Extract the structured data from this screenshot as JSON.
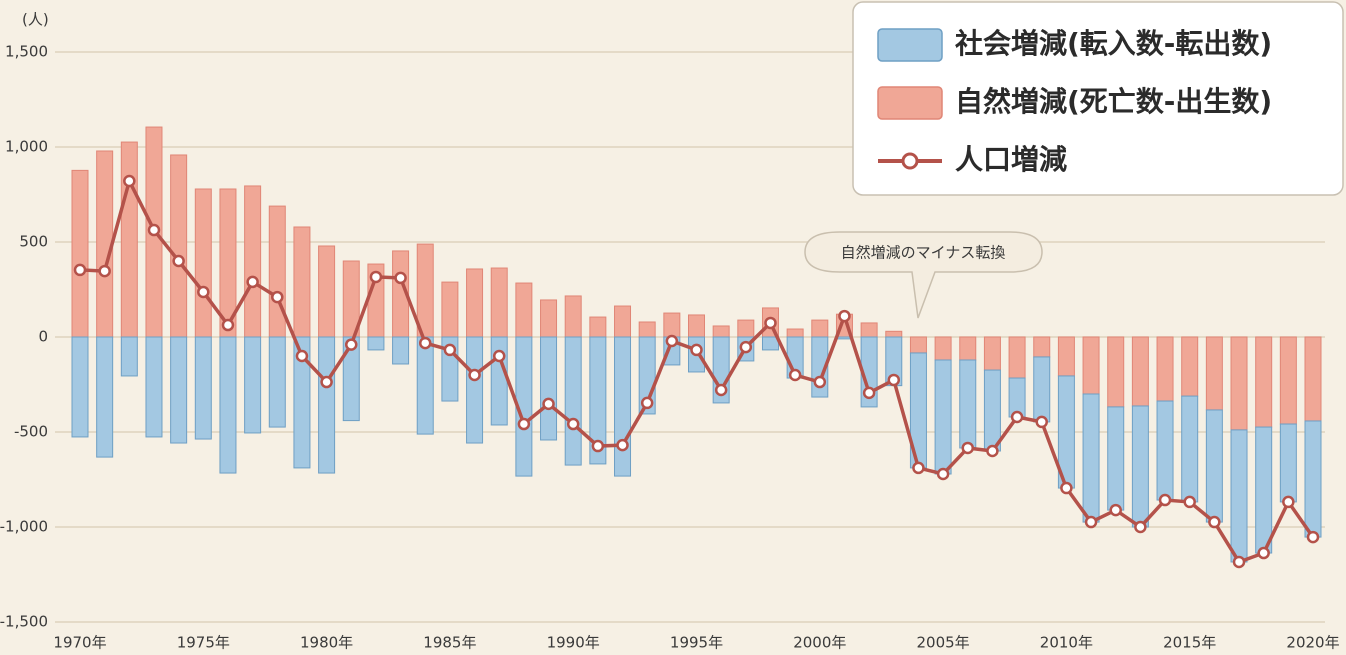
{
  "chart_data": {
    "type": "bar",
    "y_label": "(人)",
    "annotation": "自然増減のマイナス転換",
    "categories": [
      "1970年",
      null,
      null,
      null,
      null,
      "1975年",
      null,
      null,
      null,
      null,
      "1980年",
      null,
      null,
      null,
      null,
      "1985年",
      null,
      null,
      null,
      null,
      "1990年",
      null,
      null,
      null,
      null,
      "1995年",
      null,
      null,
      null,
      null,
      "2000年",
      null,
      null,
      null,
      null,
      "2005年",
      null,
      null,
      null,
      null,
      "2010年",
      null,
      null,
      null,
      null,
      "2015年",
      null,
      null,
      null,
      null,
      "2020年"
    ],
    "series": [
      {
        "name": "社会増減(転入数-転出数)",
        "type": "bar",
        "color": "#a3c8e2",
        "values": [
          -526,
          -632,
          -205,
          -526,
          -558,
          -537,
          -716,
          -505,
          -474,
          -689,
          -716,
          -440,
          -68,
          -142,
          -511,
          -337,
          -558,
          -463,
          -732,
          -542,
          -674,
          -668,
          -732,
          -405,
          -147,
          -184,
          -347,
          -126,
          -68,
          -216,
          -316,
          -10,
          -368,
          -256,
          -605,
          -600,
          -463,
          -426,
          -205,
          -342,
          -590,
          -674,
          -543,
          -637,
          -521,
          -557,
          -590,
          -695,
          -663,
          -410,
          -611
        ]
      },
      {
        "name": "自然増減(死亡数-出生数)",
        "type": "bar",
        "color": "#f0a796",
        "values": [
          877,
          979,
          1026,
          1105,
          958,
          779,
          779,
          795,
          689,
          579,
          479,
          400,
          384,
          453,
          489,
          289,
          358,
          363,
          284,
          195,
          216,
          105,
          163,
          79,
          126,
          116,
          58,
          89,
          153,
          42,
          89,
          120,
          74,
          30,
          -84,
          -121,
          -121,
          -174,
          -216,
          -105,
          -205,
          -300,
          -368,
          -363,
          -337,
          -311,
          -384,
          -489,
          -474,
          -458,
          -442
        ]
      },
      {
        "name": "人口増減",
        "type": "line",
        "color": "#b4524a",
        "values": [
          353,
          347,
          821,
          563,
          400,
          237,
          63,
          290,
          210,
          -100,
          -237,
          -40,
          316,
          311,
          -32,
          -68,
          -200,
          -100,
          -458,
          -352,
          -458,
          -574,
          -569,
          -347,
          -21,
          -68,
          -279,
          -53,
          74,
          -200,
          -237,
          110,
          -294,
          -226,
          -689,
          -721,
          -584,
          -600,
          -421,
          -447,
          -795,
          -974,
          -911,
          -1000,
          -858,
          -868,
          -974,
          -1184,
          -1137,
          -868,
          -1053
        ]
      }
    ],
    "ylim": [
      -1500,
      1500
    ],
    "yticks": [
      {
        "value": -1500,
        "label": "-1,500"
      },
      {
        "value": -1000,
        "label": "-1,000"
      },
      -500,
      0,
      500,
      {
        "value": 1000,
        "label": "1,000"
      },
      {
        "value": 1500,
        "label": "1,500"
      }
    ],
    "grid": true,
    "legend": "top-right"
  }
}
